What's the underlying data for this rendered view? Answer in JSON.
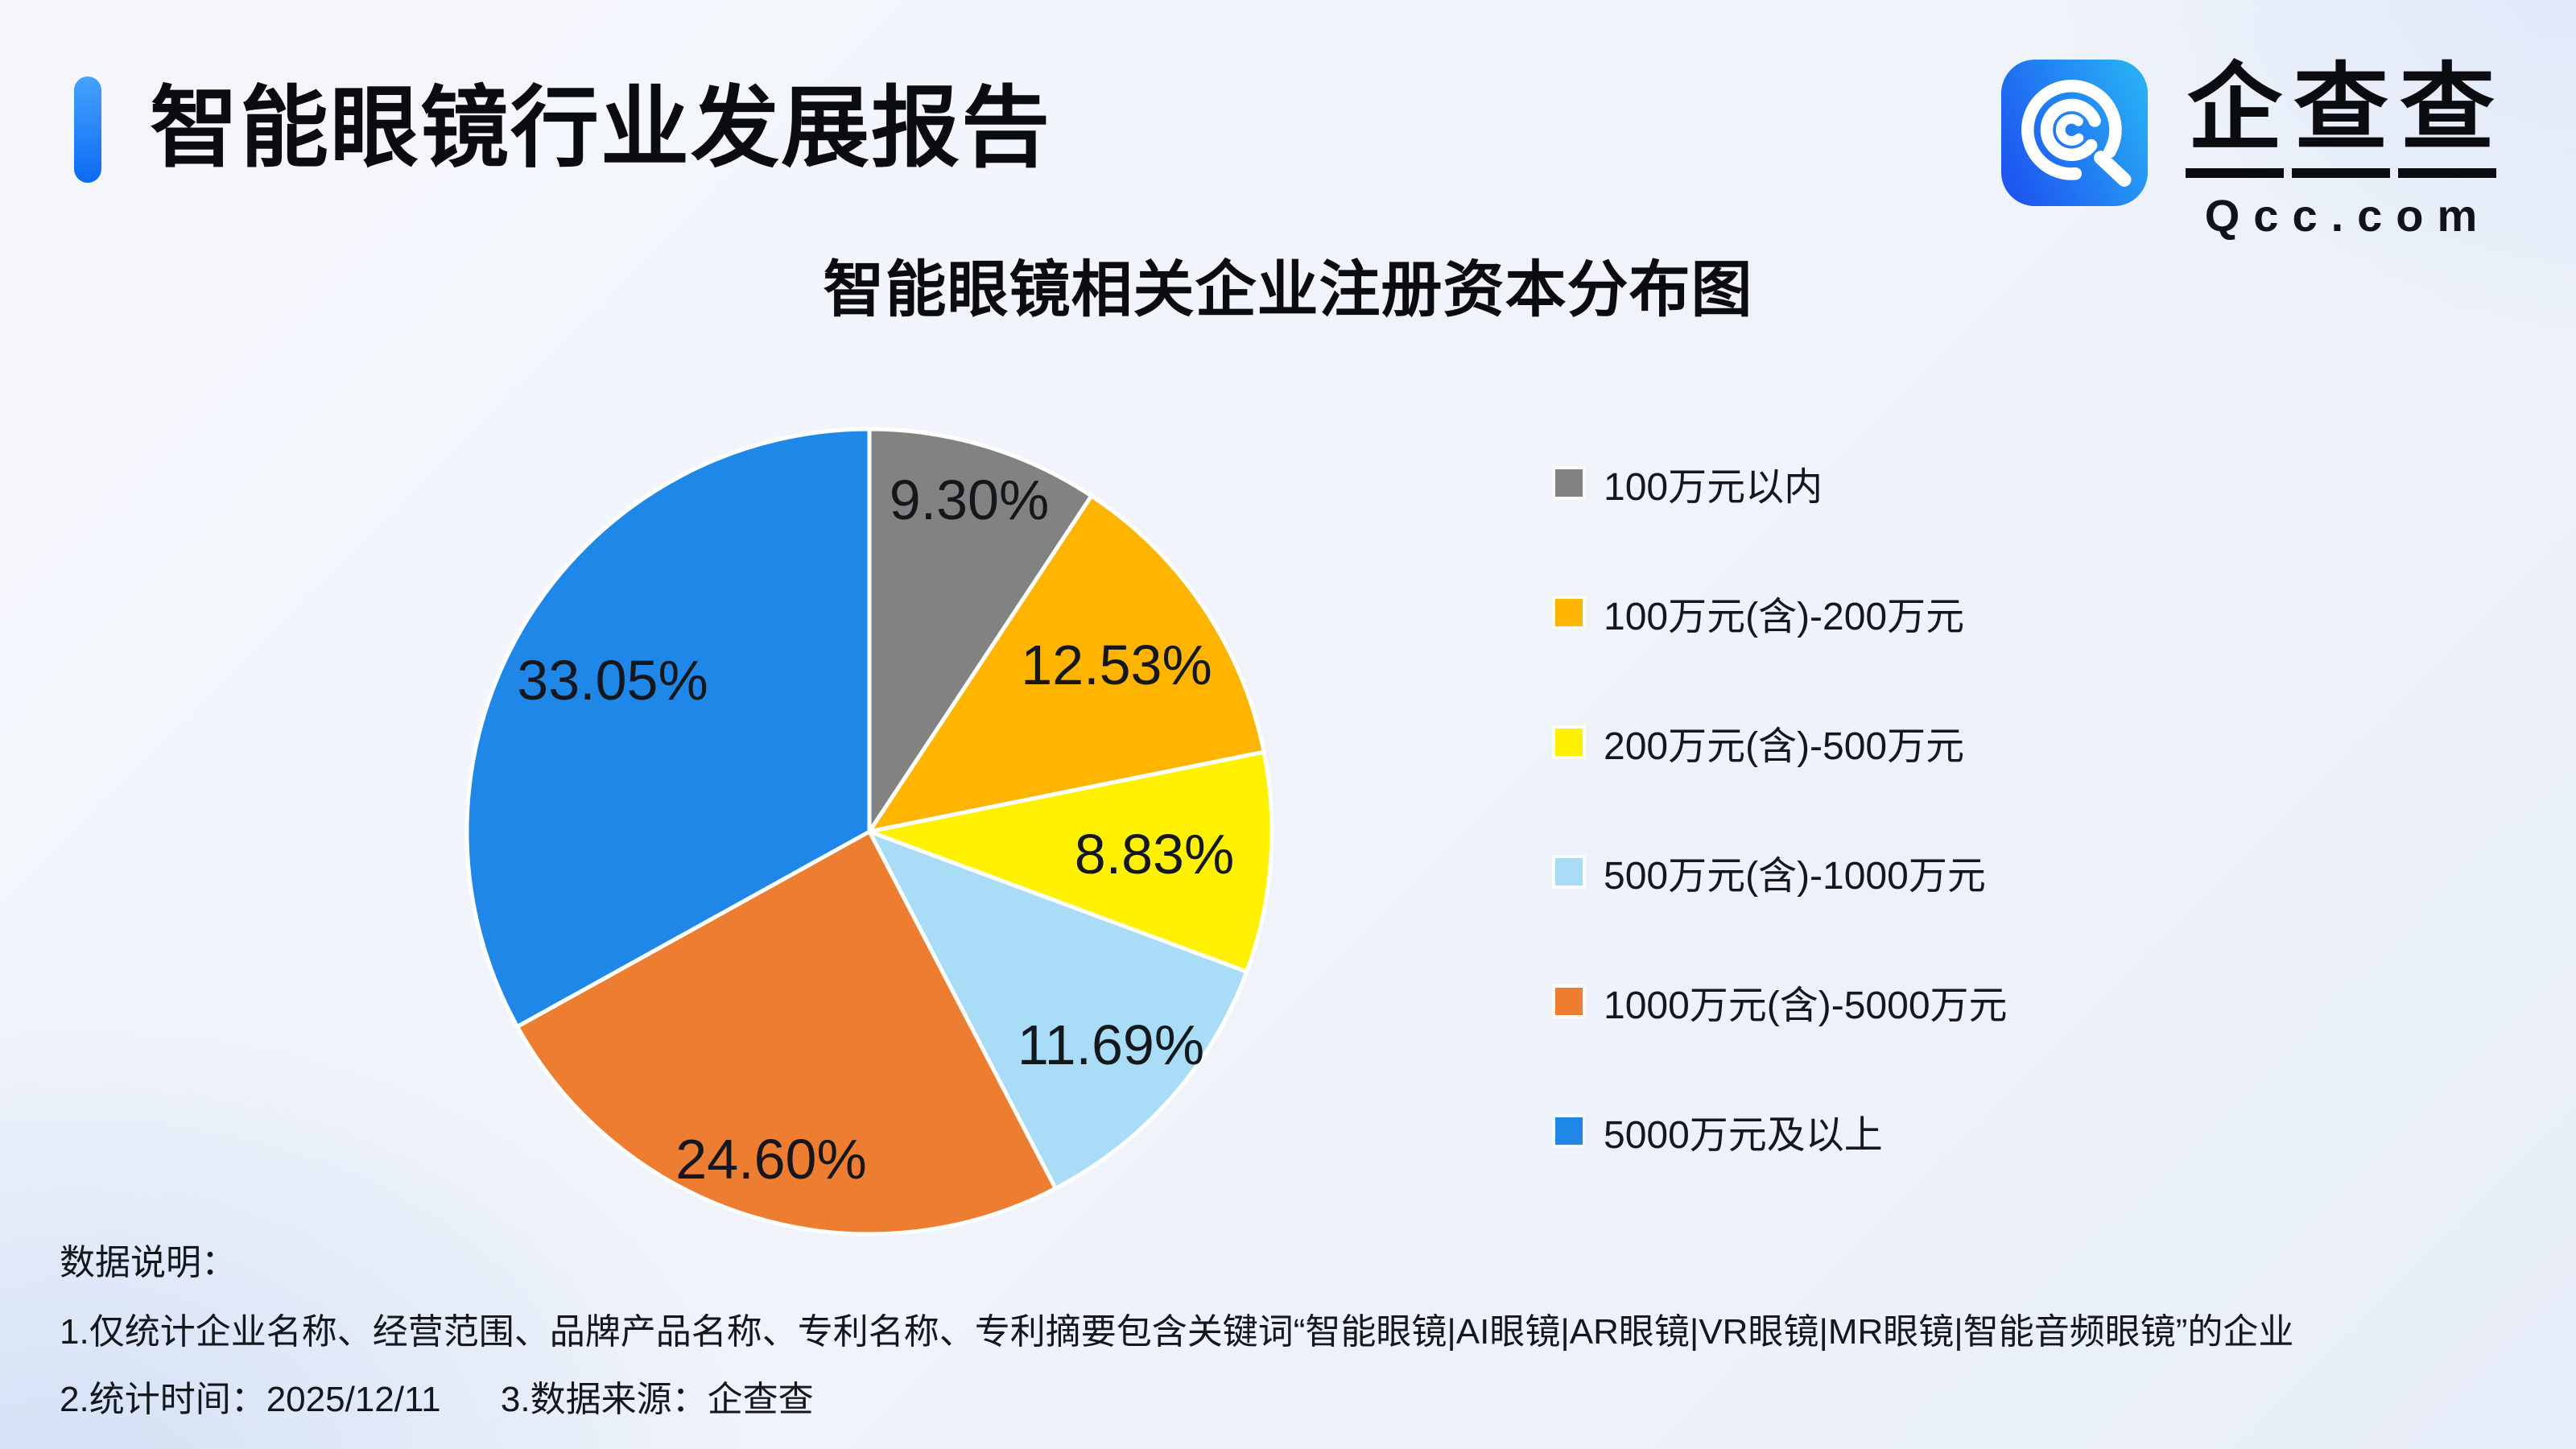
{
  "header": {
    "title": "智能眼镜行业发展报告",
    "accent_color": "#0b6bf2"
  },
  "logo": {
    "brand_name": "企查查",
    "brand_chars": [
      "企",
      "查",
      "查"
    ],
    "domain": "Qcc.com",
    "icon": "qcc-magnifier-icon",
    "icon_gradient": [
      "#1d55f0",
      "#28aef5"
    ]
  },
  "chart_data": {
    "type": "pie",
    "title": "智能眼镜相关企业注册资本分布图",
    "start_angle_deg": 0,
    "direction": "clockwise",
    "legend_position": "right",
    "slice_border_color": "#ffffff",
    "slices": [
      {
        "label": "100万元以内",
        "value": 9.3,
        "display": "9.30%",
        "color": "#828282"
      },
      {
        "label": "100万元(含)-200万元",
        "value": 12.53,
        "display": "12.53%",
        "color": "#FFB400"
      },
      {
        "label": "200万元(含)-500万元",
        "value": 8.83,
        "display": "8.83%",
        "color": "#FFF100"
      },
      {
        "label": "500万元(含)-1000万元",
        "value": 11.69,
        "display": "11.69%",
        "color": "#A8DCF7"
      },
      {
        "label": "1000万元(含)-5000万元",
        "value": 24.6,
        "display": "24.60%",
        "color": "#ED7D31"
      },
      {
        "label": "5000万元及以上",
        "value": 33.05,
        "display": "33.05%",
        "color": "#1E87E8"
      }
    ]
  },
  "notes": {
    "heading": "数据说明：",
    "line1": "1.仅统计企业名称、经营范围、品牌产品名称、专利名称、专利摘要包含关键词“智能眼镜|AI眼镜|AR眼镜|VR眼镜|MR眼镜|智能音频眼镜”的企业",
    "line2_time": "2.统计时间：2025/12/11",
    "line2_source": "3.数据来源：企查查"
  }
}
